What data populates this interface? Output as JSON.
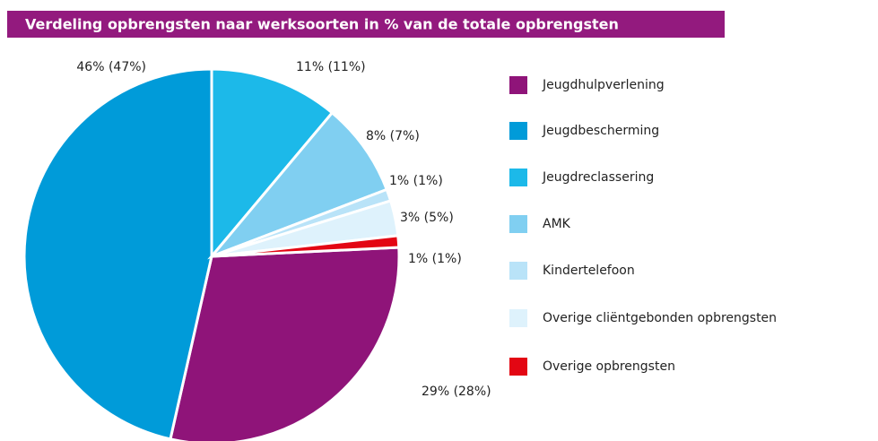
{
  "chart_data": {
    "type": "pie",
    "title": "Verdeling opbrengsten naar werksoorten in % van de totale opbrengsten",
    "categories": [
      "Jeugdhulpverlening",
      "Jeugdbescherming",
      "Jeugdreclassering",
      "AMK",
      "Kindertelefoon",
      "Overige cliëntgebonden opbrengsten",
      "Overige opbrengsten"
    ],
    "values": [
      29,
      46,
      11,
      8,
      1,
      3,
      1
    ],
    "value_labels": [
      "29% (28%)",
      "46% (47%)",
      "11% (11%)",
      "8% (7%)",
      "1% (1%)",
      "3% (5%)",
      "1% (1%)"
    ],
    "colors": [
      "#8f1479",
      "#009bd9",
      "#1cb9e9",
      "#80cff1",
      "#b9e3f8",
      "#def2fc",
      "#e30613"
    ],
    "legend": "right"
  }
}
